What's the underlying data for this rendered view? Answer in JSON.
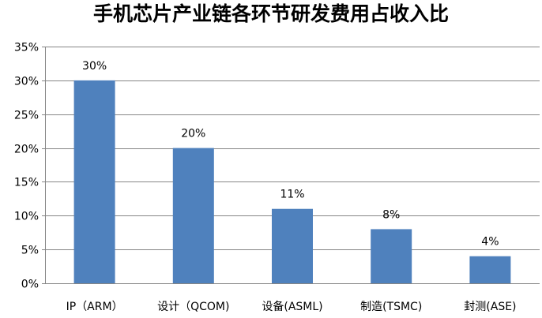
{
  "chart_data": {
    "type": "bar",
    "title": "手机芯片产业链各环节研发费用占收入比",
    "xlabel": "",
    "ylabel": "",
    "categories": [
      "IP（ARM）",
      "设计（QCOM)",
      "设备(ASML)",
      "制造(TSMC)",
      "封测(ASE)"
    ],
    "values": [
      30,
      20,
      11,
      8,
      4
    ],
    "data_labels": [
      "30%",
      "20%",
      "11%",
      "8%",
      "4%"
    ],
    "ylim": [
      0,
      35
    ],
    "yticks": [
      0,
      5,
      10,
      15,
      20,
      25,
      30,
      35
    ],
    "ytick_labels": [
      "0%",
      "5%",
      "10%",
      "15%",
      "20%",
      "25%",
      "30%",
      "35%"
    ],
    "value_unit": "%",
    "grid": true,
    "legend": "none",
    "bar_color": "#4f81bd",
    "grid_color": "#868686"
  }
}
